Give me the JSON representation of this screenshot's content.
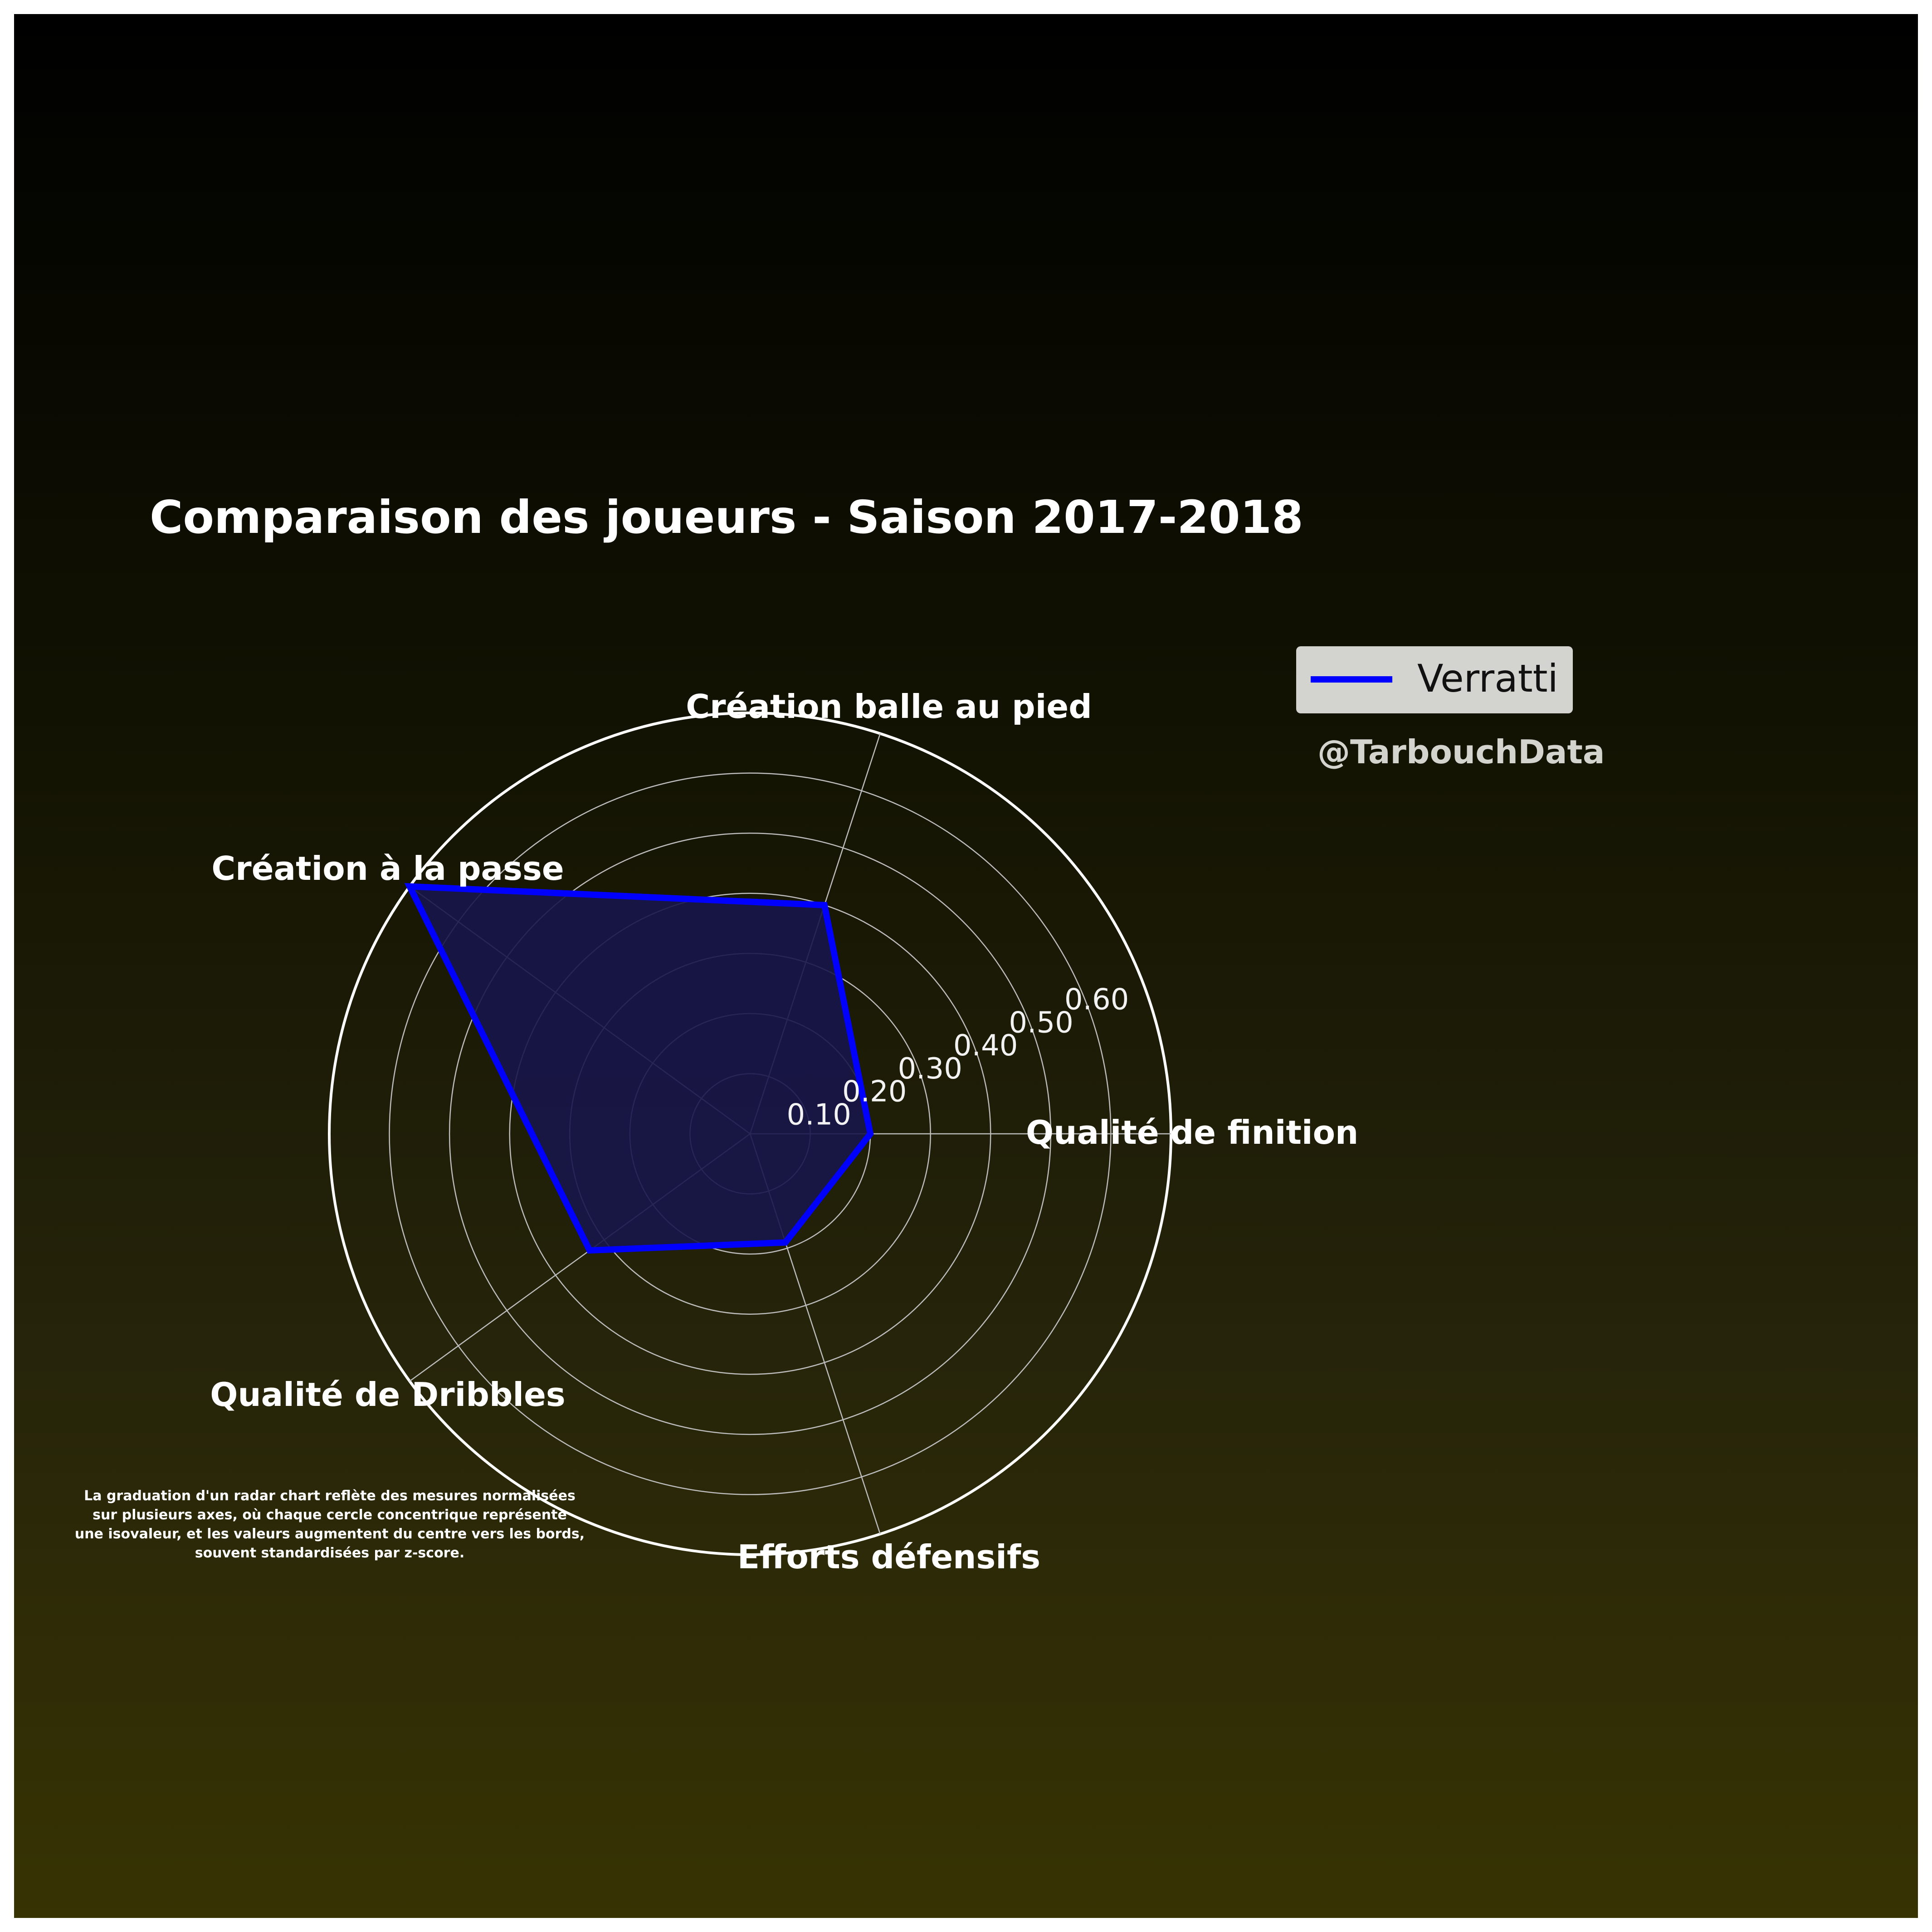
{
  "chart_data": {
    "type": "radar",
    "title": "Comparaison des joueurs - Saison 2017-2018",
    "axes": [
      "Qualité de finition",
      "Création balle au pied",
      "Création à la passe",
      "Qualité de Dribbles",
      "Efforts défensifs"
    ],
    "rlim": [
      0,
      0.7
    ],
    "radial_ticks": [
      0.1,
      0.2,
      0.3,
      0.4,
      0.5,
      0.6
    ],
    "radial_tick_labels": [
      "0.10",
      "0.20",
      "0.30",
      "0.40",
      "0.50",
      "0.60"
    ],
    "grid": true,
    "series": [
      {
        "name": "Verratti",
        "values": [
          0.2,
          0.4,
          0.7,
          0.33,
          0.19
        ],
        "color": "#0000ff",
        "fill": "#17154a"
      }
    ],
    "legend_position": "top-right"
  },
  "watermark": "@TarbouchData",
  "note_lines": [
    "La graduation d'un radar chart reflète des mesures normalisées",
    "sur plusieurs axes, où chaque cercle concentrique représente",
    "une isovaleur, et les valeurs augmentent du centre vers les bords,",
    "souvent standardisées par z-score."
  ]
}
